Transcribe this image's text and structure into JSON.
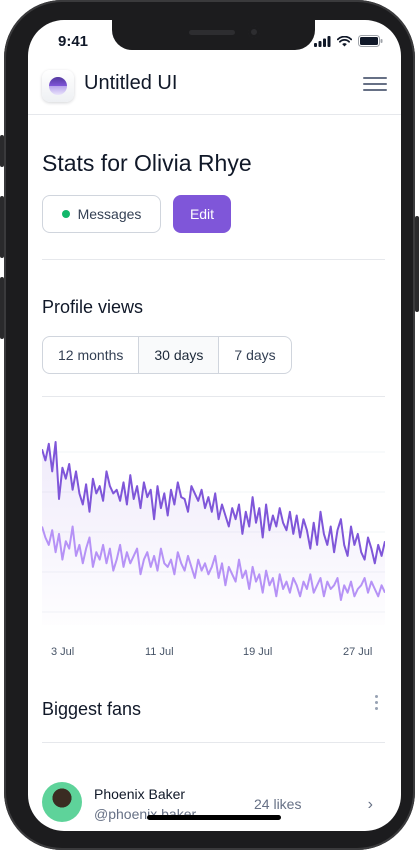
{
  "status_bar": {
    "time": "9:41"
  },
  "header": {
    "app_title": "Untitled UI"
  },
  "page": {
    "title": "Stats for Olivia Rhye"
  },
  "actions": {
    "messages_label": "Messages",
    "edit_label": "Edit"
  },
  "profile_views": {
    "title": "Profile views",
    "tabs": [
      {
        "label": "12 months",
        "active": false
      },
      {
        "label": "30 days",
        "active": true
      },
      {
        "label": "7 days",
        "active": false
      }
    ]
  },
  "chart_data": {
    "type": "line",
    "x_ticks": [
      "3 Jul",
      "11 Jul",
      "19 Jul",
      "27 Jul"
    ],
    "series": [
      {
        "color": "#7f56d9",
        "values": [
          82,
          76,
          85,
          70,
          86,
          55,
          72,
          66,
          74,
          60,
          70,
          58,
          52,
          63,
          48,
          66,
          58,
          62,
          54,
          70,
          62,
          58,
          60,
          54,
          64,
          52,
          68,
          55,
          62,
          50,
          64,
          56,
          60,
          44,
          62,
          50,
          58,
          46,
          60,
          52,
          64,
          56,
          55,
          48,
          62,
          58,
          54,
          60,
          50,
          56,
          48,
          58,
          44,
          52,
          46,
          40,
          50,
          44,
          52,
          36,
          48,
          40,
          56,
          42,
          50,
          34,
          52,
          38,
          46,
          40,
          50,
          42,
          38,
          48,
          36,
          46,
          34,
          44,
          38,
          28,
          42,
          30,
          48,
          36,
          30,
          40,
          26,
          38,
          44,
          30,
          24,
          40,
          30,
          36,
          26,
          22,
          34,
          28,
          20,
          30,
          24,
          32
        ]
      },
      {
        "color": "#b692f6",
        "values": [
          40,
          34,
          30,
          38,
          26,
          36,
          22,
          32,
          28,
          40,
          24,
          30,
          20,
          28,
          34,
          18,
          26,
          22,
          30,
          20,
          28,
          16,
          22,
          30,
          18,
          26,
          20,
          24,
          28,
          14,
          22,
          26,
          18,
          24,
          16,
          28,
          20,
          18,
          22,
          14,
          26,
          20,
          16,
          24,
          18,
          12,
          22,
          16,
          20,
          14,
          18,
          24,
          12,
          20,
          8,
          18,
          14,
          10,
          22,
          12,
          16,
          6,
          18,
          10,
          14,
          4,
          16,
          8,
          12,
          2,
          14,
          6,
          10,
          4,
          12,
          8,
          2,
          10,
          6,
          14,
          4,
          8,
          12,
          2,
          10,
          6,
          8,
          12,
          0,
          8,
          4,
          10,
          2,
          6,
          8,
          12,
          4,
          10,
          6,
          2,
          8,
          4
        ]
      }
    ]
  },
  "fans": {
    "title": "Biggest fans",
    "items": [
      {
        "name": "Phoenix Baker",
        "handle": "@phoenix.baker",
        "likes": "24 likes"
      }
    ]
  }
}
